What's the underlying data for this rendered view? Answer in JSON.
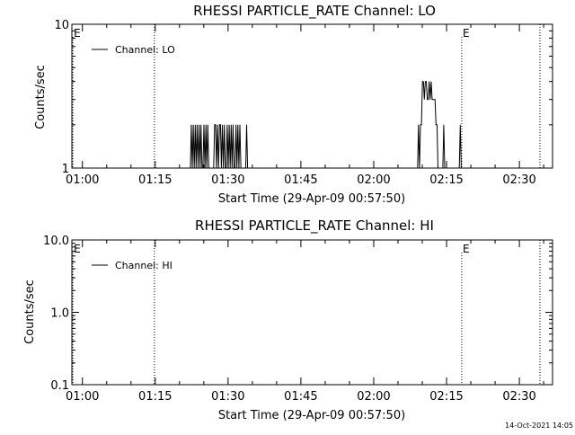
{
  "footer": {
    "timestamp": "14-Oct-2021 14:05"
  },
  "chart_data": [
    {
      "type": "line",
      "title": "RHESSI PARTICLE_RATE Channel: LO",
      "xlabel": "Start Time (29-Apr-09 00:57:50)",
      "ylabel": "Counts/sec",
      "x_unit": "minutes since 00:57:50",
      "xlim": [
        0,
        99
      ],
      "xticks": [
        {
          "label": "01:00",
          "value": 2.17
        },
        {
          "label": "01:15",
          "value": 17.17
        },
        {
          "label": "01:30",
          "value": 32.17
        },
        {
          "label": "01:45",
          "value": 47.17
        },
        {
          "label": "02:00",
          "value": 62.17
        },
        {
          "label": "02:15",
          "value": 77.17
        },
        {
          "label": "02:30",
          "value": 92.17
        }
      ],
      "ylog": true,
      "ylim": [
        1,
        10
      ],
      "yticks": [
        {
          "label": "1",
          "value": 1
        },
        {
          "label": "10",
          "value": 10
        }
      ],
      "legend": {
        "position": "top-left",
        "entries": [
          "Channel: LO"
        ]
      },
      "markers": [
        {
          "label": "E",
          "x": 0.2
        },
        {
          "label": "",
          "x": 17.0
        },
        {
          "label": "E",
          "x": 80.3
        },
        {
          "label": "",
          "x": 96.4
        }
      ],
      "series": [
        {
          "name": "Channel: LO",
          "x": [
            24.4,
            24.6,
            24.8,
            25.0,
            25.2,
            25.4,
            25.6,
            25.8,
            26.0,
            26.2,
            26.4,
            26.6,
            26.8,
            27.0,
            27.2,
            27.4,
            27.6,
            27.8,
            28.0,
            28.2,
            29.2,
            29.4,
            29.6,
            29.8,
            30.0,
            30.2,
            30.4,
            30.6,
            30.8,
            31.0,
            31.2,
            31.4,
            31.6,
            31.8,
            32.0,
            32.2,
            32.4,
            32.6,
            32.8,
            33.0,
            33.2,
            33.4,
            33.6,
            33.8,
            34.0,
            34.2,
            34.4,
            34.6,
            34.8,
            35.0,
            35.8,
            36.0,
            36.2,
            71.2,
            71.4,
            71.6,
            71.8,
            72.0,
            72.2,
            72.4,
            72.6,
            72.8,
            73.0,
            73.2,
            73.4,
            73.6,
            73.8,
            74.0,
            74.2,
            74.4,
            74.6,
            74.8,
            75.0,
            75.2,
            75.4,
            75.6,
            75.8,
            76.0,
            76.2,
            76.4,
            76.6,
            76.8,
            77.0,
            77.2,
            77.4,
            77.6,
            77.8,
            78.0,
            78.2,
            78.4,
            78.6,
            79.8,
            80.0,
            80.2,
            80.4,
            80.6,
            80.8
          ],
          "y": [
            1,
            2,
            1,
            2,
            1,
            2,
            1,
            2,
            1,
            2,
            1,
            2,
            1,
            1,
            2,
            1,
            2,
            1,
            2,
            1,
            1,
            2,
            2,
            1,
            2,
            1,
            2,
            2,
            1,
            2,
            1,
            2,
            1,
            1,
            2,
            1,
            2,
            1,
            2,
            1,
            2,
            1,
            1,
            2,
            1,
            2,
            1,
            2,
            1,
            1,
            1,
            2,
            1,
            1,
            2,
            1,
            2,
            2,
            4,
            4,
            3,
            4,
            4,
            3,
            3,
            4,
            3,
            4,
            3,
            3,
            3,
            3,
            2,
            2,
            1,
            1,
            1,
            1,
            1,
            1,
            2,
            1,
            1,
            1,
            1,
            1,
            1,
            1,
            1,
            1,
            1,
            1,
            2,
            1,
            1,
            1,
            1
          ]
        }
      ]
    },
    {
      "type": "line",
      "title": "RHESSI PARTICLE_RATE Channel: HI",
      "xlabel": "Start Time (29-Apr-09 00:57:50)",
      "ylabel": "Counts/sec",
      "x_unit": "minutes since 00:57:50",
      "xlim": [
        0,
        99
      ],
      "xticks": [
        {
          "label": "01:00",
          "value": 2.17
        },
        {
          "label": "01:15",
          "value": 17.17
        },
        {
          "label": "01:30",
          "value": 32.17
        },
        {
          "label": "01:45",
          "value": 47.17
        },
        {
          "label": "02:00",
          "value": 62.17
        },
        {
          "label": "02:15",
          "value": 77.17
        },
        {
          "label": "02:30",
          "value": 92.17
        }
      ],
      "ylog": true,
      "ylim": [
        0.1,
        10
      ],
      "yticks": [
        {
          "label": "0.1",
          "value": 0.1
        },
        {
          "label": "1.0",
          "value": 1
        },
        {
          "label": "10.0",
          "value": 10
        }
      ],
      "legend": {
        "position": "top-left",
        "entries": [
          "Channel: HI"
        ]
      },
      "markers": [
        {
          "label": "E",
          "x": 0.2
        },
        {
          "label": "",
          "x": 17.0
        },
        {
          "label": "E",
          "x": 80.3
        },
        {
          "label": "",
          "x": 96.4
        }
      ],
      "series": [
        {
          "name": "Channel: HI",
          "x": [],
          "y": []
        }
      ]
    }
  ]
}
